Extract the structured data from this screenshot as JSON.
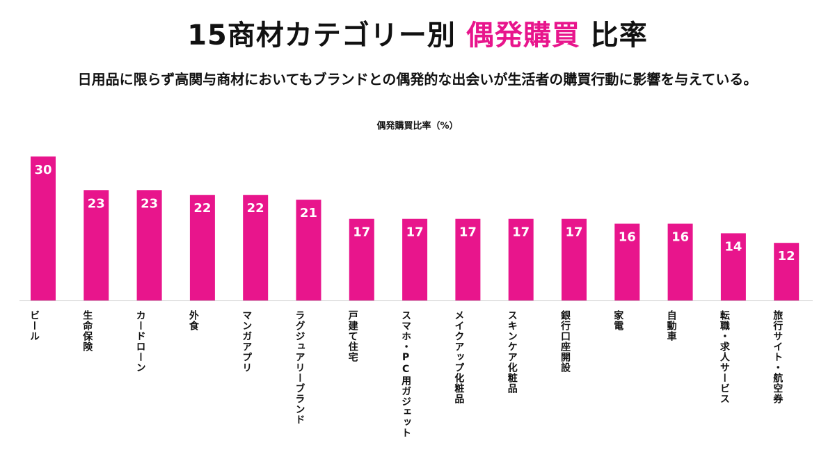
{
  "header": {
    "title_prefix": "15商材カテゴリー別",
    "title_accent": "偶発購買",
    "title_suffix": "比率",
    "subtitle": "日用品に限らず高関与商材においてもブランドとの偶発的な出会いが生活者の購買行動に影響を与えている。"
  },
  "colors": {
    "accent": "#e8158c",
    "bar": "#e8158c",
    "bar_label": "#ffffff",
    "axis": "#cccccc"
  },
  "chart_data": {
    "type": "bar",
    "title": "偶発購買比率（%）",
    "xlabel": "",
    "ylabel": "",
    "ylim": [
      0,
      30
    ],
    "grid": false,
    "legend": "none",
    "categories": [
      "ビール",
      "生命保険",
      "カードローン",
      "外食",
      "マンガアプリ",
      "ラグジュアリーブランド",
      "戸建て住宅",
      "スマホ・PC用ガジェット",
      "メイクアップ化粧品",
      "スキンケア化粧品",
      "銀行口座開設",
      "家電",
      "自動車",
      "転職・求人サービス",
      "旅行サイト・航空券"
    ],
    "values": [
      30,
      23,
      23,
      22,
      22,
      21,
      17,
      17,
      17,
      17,
      17,
      16,
      16,
      14,
      12
    ],
    "value_labels": [
      "30",
      "23",
      "23",
      "22",
      "22",
      "21",
      "17",
      "17",
      "17",
      "17",
      "17",
      "16",
      "16",
      "14",
      "12"
    ]
  }
}
